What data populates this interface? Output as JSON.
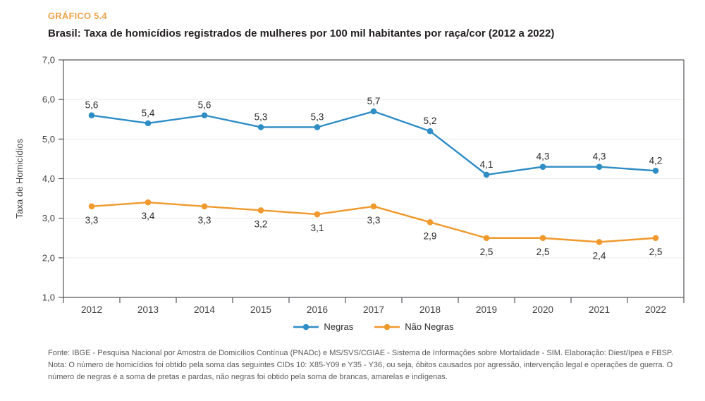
{
  "header": {
    "kicker": "GRÁFICO 5.4",
    "title": "Brasil: Taxa de homicídios registrados de mulheres por 100 mil habitantes por raça/cor (2012 a 2022)"
  },
  "chart_data": {
    "type": "line",
    "title": "GRÁFICO 5.4 — Brasil: Taxa de homicídios registrados de mulheres por 100 mil habitantes por raça/cor (2012 a 2022)",
    "xlabel": "",
    "ylabel": "Taxa de Homicídios",
    "ylim": [
      1,
      7
    ],
    "grid": "horizontal",
    "legend_position": "bottom",
    "categories": [
      "2012",
      "2013",
      "2014",
      "2015",
      "2016",
      "2017",
      "2018",
      "2019",
      "2020",
      "2021",
      "2022"
    ],
    "y_ticks": {
      "values": [
        7,
        6,
        5,
        4,
        3,
        2,
        1
      ],
      "labels": [
        "7,0",
        "6,0",
        "5,0",
        "4,0",
        "3,0",
        "2,0",
        "1,0"
      ]
    },
    "series": [
      {
        "name": "Negras",
        "color": "#2e8dc5",
        "values": [
          5.6,
          5.4,
          5.6,
          5.3,
          5.3,
          5.7,
          5.2,
          4.1,
          4.3,
          4.3,
          4.2
        ],
        "point_labels": [
          "5,6",
          "5,4",
          "5,6",
          "5,3",
          "5,3",
          "5,7",
          "5,2",
          "4,1",
          "4,3",
          "4,3",
          "4,2"
        ],
        "label_position": "above"
      },
      {
        "name": "Não Negras",
        "color": "#f0992c",
        "values": [
          3.3,
          3.4,
          3.3,
          3.2,
          3.1,
          3.3,
          2.9,
          2.5,
          2.5,
          2.4,
          2.5
        ],
        "point_labels": [
          "3,3",
          "3,4",
          "3,3",
          "3,2",
          "3,1",
          "3,3",
          "2,9",
          "2,5",
          "2,5",
          "2,4",
          "2,5"
        ],
        "label_position": "below"
      }
    ]
  },
  "footer": {
    "fonte": "Fonte: IBGE - Pesquisa Nacional por Amostra de Domicílios Contínua (PNADc) e MS/SVS/CGIAE - Sistema de Informações sobre Mortalidade - SIM. Elaboração: Diest/Ipea e FBSP.",
    "nota": "Nota: O número de homicídios foi obtido pela soma das seguintes CIDs 10: X85-Y09 e Y35 - Y36, ou seja, óbitos causados por agressão, intervenção legal e operações de guerra. O número de negras é a soma de pretas e pardas, não negras foi obtido pela soma de brancas, amarelas e indígenas."
  },
  "colors": {
    "kicker_accent": "#f1a24b",
    "series_negras": "#2e8dc5",
    "series_nao_negras": "#f0992c",
    "axis": "#55565a",
    "gridline": "#e9e9e9",
    "label_text": "#2b2b2b",
    "footer_text": "#595a5c"
  }
}
